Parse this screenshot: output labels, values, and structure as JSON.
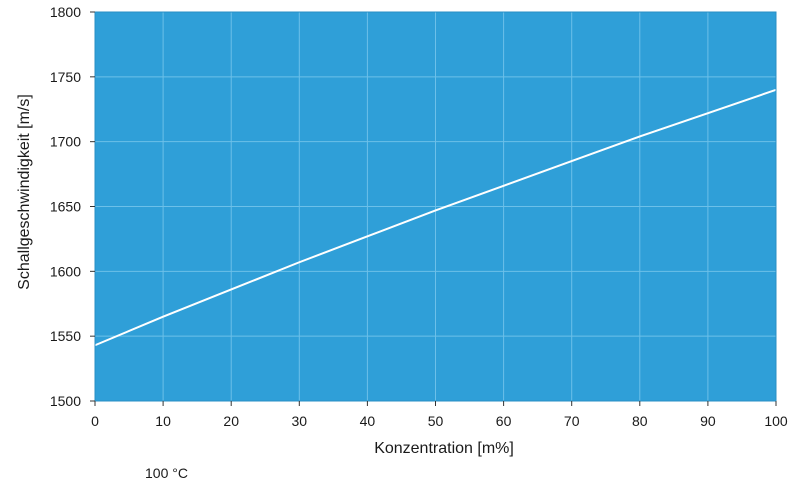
{
  "chart_data": {
    "type": "line",
    "title": "",
    "xlabel": "Konzentration [m%]",
    "ylabel": "Schallgeschwindigkeit [m/s]",
    "xlim": [
      0,
      100
    ],
    "ylim": [
      1500,
      1800
    ],
    "x_ticks": [
      0,
      10,
      20,
      30,
      40,
      50,
      60,
      70,
      80,
      90,
      100
    ],
    "y_ticks": [
      1500,
      1550,
      1600,
      1650,
      1700,
      1750,
      1800
    ],
    "grid": true,
    "colors": {
      "plot_background": "#2f9fd8",
      "gridline": "#6cc0e9",
      "series_line": "#ffffff"
    },
    "series": [
      {
        "name": "100 °C",
        "x": [
          0,
          10,
          20,
          30,
          40,
          50,
          60,
          70,
          80,
          90,
          100
        ],
        "y": [
          1543,
          1565,
          1586,
          1607,
          1627,
          1647,
          1666,
          1685,
          1704,
          1722,
          1740
        ]
      }
    ],
    "legend_text": "100 °C"
  }
}
